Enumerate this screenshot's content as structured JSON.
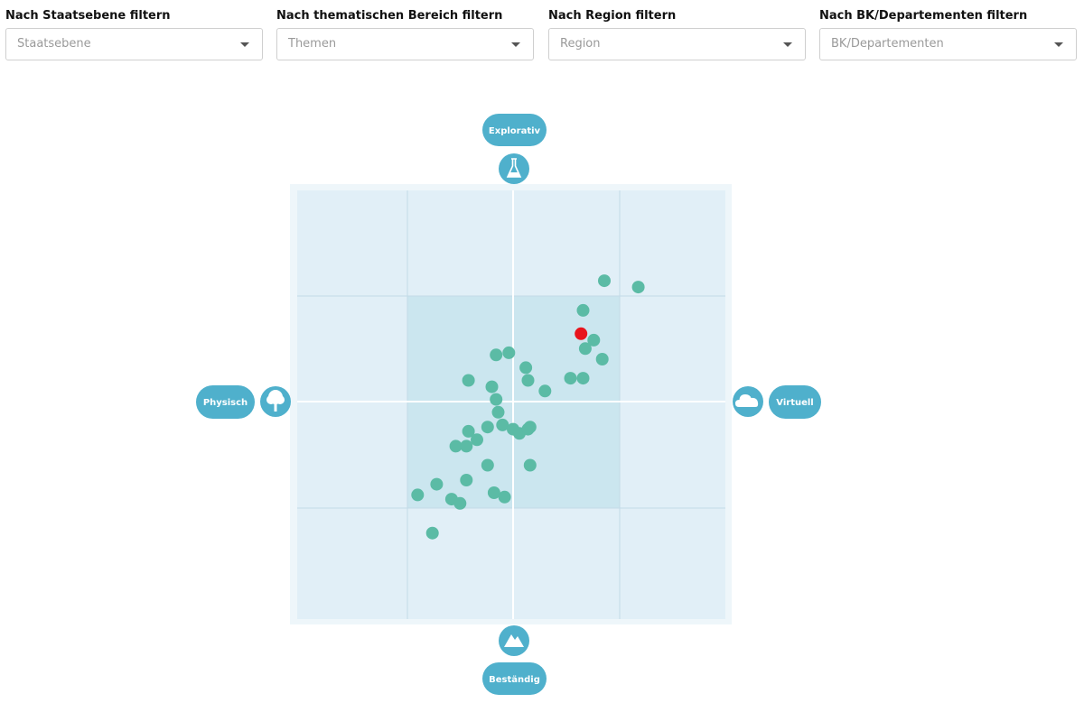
{
  "filters": [
    {
      "label": "Nach Staatsebene filtern",
      "placeholder": "Staatsebene"
    },
    {
      "label": "Nach thematischen Bereich filtern",
      "placeholder": "Themen"
    },
    {
      "label": "Nach Region filtern",
      "placeholder": "Region"
    },
    {
      "label": "Nach BK/Departementen filtern",
      "placeholder": "BK/Departementen"
    }
  ],
  "chart_data": {
    "type": "scatter",
    "axes": {
      "top": {
        "label": "Explorativ",
        "icon": "flask-icon"
      },
      "bottom": {
        "label": "Beständig",
        "icon": "mountain-icon"
      },
      "left": {
        "label": "Physisch",
        "icon": "tree-icon"
      },
      "right": {
        "label": "Virtuell",
        "icon": "cloud-icon"
      }
    },
    "xlim": [
      -1,
      1
    ],
    "ylim": [
      -1,
      1
    ],
    "grid": true,
    "colors": {
      "point": "#5bbba5",
      "highlight": "#e8141c",
      "pill": "#4fb0cc",
      "plot_bg": "#e1eff7",
      "inner_bg": "#cbe6ef",
      "frame": "#eef6fa"
    },
    "series": [
      {
        "highlight": false,
        "points": [
          [
            0.43,
            0.57
          ],
          [
            0.59,
            0.54
          ],
          [
            0.33,
            0.43
          ],
          [
            0.38,
            0.29
          ],
          [
            0.34,
            0.25
          ],
          [
            0.42,
            0.2
          ],
          [
            -0.08,
            0.22
          ],
          [
            -0.02,
            0.23
          ],
          [
            0.06,
            0.16
          ],
          [
            0.07,
            0.1
          ],
          [
            -0.21,
            0.1
          ],
          [
            0.27,
            0.11
          ],
          [
            0.33,
            0.11
          ],
          [
            -0.1,
            0.07
          ],
          [
            0.15,
            0.05
          ],
          [
            -0.08,
            0.01
          ],
          [
            -0.07,
            -0.05
          ],
          [
            -0.05,
            -0.11
          ],
          [
            0.08,
            -0.12
          ],
          [
            -0.12,
            -0.12
          ],
          [
            0.0,
            -0.13
          ],
          [
            -0.21,
            -0.14
          ],
          [
            0.03,
            -0.15
          ],
          [
            0.07,
            -0.13
          ],
          [
            -0.17,
            -0.18
          ],
          [
            -0.27,
            -0.21
          ],
          [
            -0.22,
            -0.21
          ],
          [
            -0.12,
            -0.3
          ],
          [
            0.08,
            -0.3
          ],
          [
            -0.22,
            -0.37
          ],
          [
            -0.36,
            -0.39
          ],
          [
            -0.45,
            -0.44
          ],
          [
            -0.09,
            -0.43
          ],
          [
            -0.04,
            -0.45
          ],
          [
            -0.29,
            -0.46
          ],
          [
            -0.25,
            -0.48
          ],
          [
            -0.38,
            -0.62
          ]
        ]
      },
      {
        "highlight": true,
        "points": [
          [
            0.32,
            0.32
          ]
        ]
      }
    ]
  }
}
